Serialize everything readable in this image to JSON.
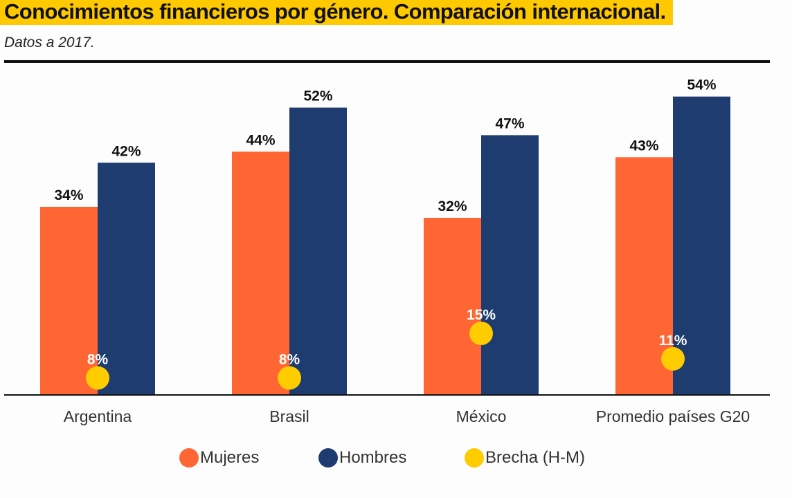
{
  "header": {
    "title": "Conocimientos financieros por género. Comparación internacional.",
    "subtitle": "Datos a 2017."
  },
  "colors": {
    "mujeres": "#ff6633",
    "hombres": "#1f3c70",
    "brecha": "#ffcc00",
    "title_bg": "#ffc900"
  },
  "chart_data": {
    "type": "bar",
    "categories": [
      "Argentina",
      "Brasil",
      "México",
      "Promedio países G20"
    ],
    "series": [
      {
        "name": "Mujeres",
        "values": [
          34,
          44,
          32,
          43
        ],
        "labels": [
          "34%",
          "44%",
          "32%",
          "43%"
        ]
      },
      {
        "name": "Hombres",
        "values": [
          42,
          52,
          47,
          54
        ],
        "labels": [
          "42%",
          "52%",
          "47%",
          "54%"
        ]
      },
      {
        "name": "Brecha (H-M)",
        "values": [
          8,
          8,
          15,
          11
        ],
        "labels": [
          "8%",
          "8%",
          "15%",
          "11%"
        ],
        "marker": "dot"
      }
    ],
    "ylim": [
      0,
      60
    ],
    "grid": false,
    "legend_position": "bottom"
  },
  "legend": [
    {
      "label": "Mujeres",
      "color": "#ff6633"
    },
    {
      "label": "Hombres",
      "color": "#1f3c70"
    },
    {
      "label": "Brecha (H-M)",
      "color": "#ffcc00"
    }
  ]
}
